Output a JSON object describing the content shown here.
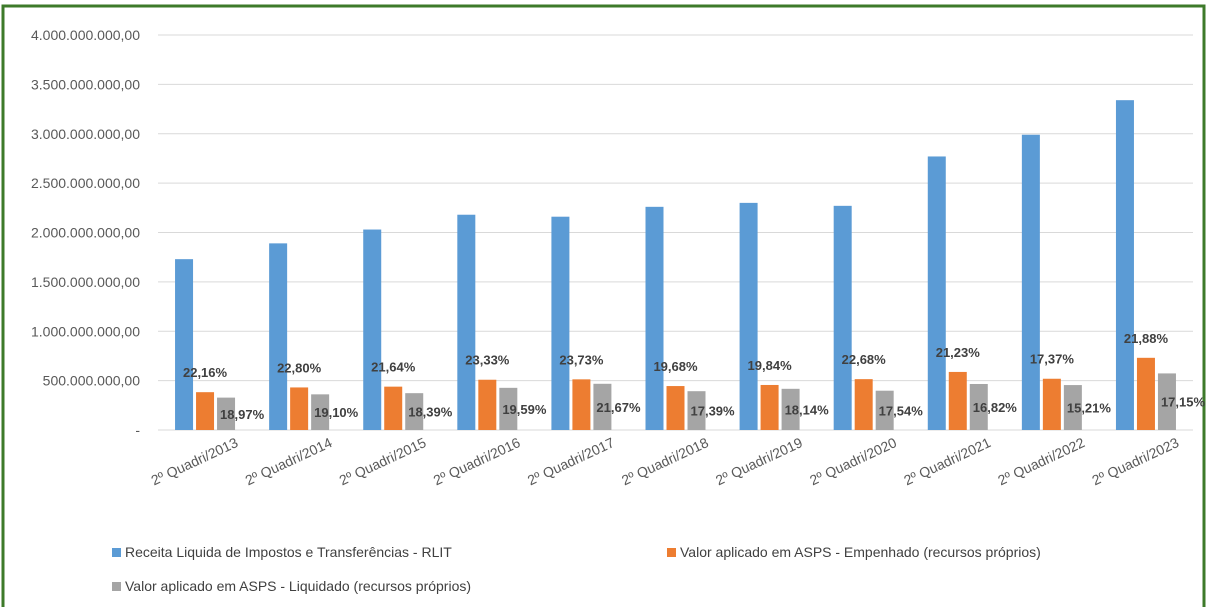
{
  "chart_data": {
    "type": "bar",
    "categories": [
      "2º Quadri/2013",
      "2º Quadri/2014",
      "2º Quadri/2015",
      "2º Quadri/2016",
      "2º Quadri/2017",
      "2º Quadri/2018",
      "2º Quadri/2019",
      "2º Quadri/2020",
      "2º Quadri/2021",
      "2º Quadri/2022",
      "2º Quadri/2023"
    ],
    "series": [
      {
        "name": "Receita Liquida de Impostos e Transferências - RLIT",
        "color": "#5b9bd5",
        "values": [
          1730000000,
          1890000000,
          2030000000,
          2180000000,
          2160000000,
          2260000000,
          2300000000,
          2270000000,
          2770000000,
          2990000000,
          3340000000
        ]
      },
      {
        "name": "Valor aplicado em ASPS - Empenhado (recursos próprios)",
        "color": "#ed7d31",
        "values": [
          383000000,
          431000000,
          439000000,
          509000000,
          513000000,
          445000000,
          456000000,
          515000000,
          588000000,
          519000000,
          731000000
        ],
        "labels": [
          "22,16%",
          "22,80%",
          "21,64%",
          "23,33%",
          "23,73%",
          "19,68%",
          "19,84%",
          "22,68%",
          "21,23%",
          "17,37%",
          "21,88%"
        ]
      },
      {
        "name": "Valor aplicado em ASPS - Liquidado (recursos próprios)",
        "color": "#a5a5a5",
        "values": [
          328000000,
          361000000,
          373000000,
          427000000,
          468000000,
          393000000,
          417000000,
          398000000,
          466000000,
          455000000,
          573000000
        ],
        "labels": [
          "18,97%",
          "19,10%",
          "18,39%",
          "19,59%",
          "21,67%",
          "17,39%",
          "18,14%",
          "17,54%",
          "16,82%",
          "15,21%",
          "17,15%"
        ]
      }
    ],
    "ylim": [
      0,
      4000000000
    ],
    "yticks": [
      {
        "value": 0,
        "label": "-"
      },
      {
        "value": 500000000,
        "label": "500.000.000,00"
      },
      {
        "value": 1000000000,
        "label": "1.000.000.000,00"
      },
      {
        "value": 1500000000,
        "label": "1.500.000.000,00"
      },
      {
        "value": 2000000000,
        "label": "2.000.000.000,00"
      },
      {
        "value": 2500000000,
        "label": "2.500.000.000,00"
      },
      {
        "value": 3000000000,
        "label": "3.000.000.000,00"
      },
      {
        "value": 3500000000,
        "label": "3.500.000.000,00"
      },
      {
        "value": 4000000000,
        "label": "4.000.000.000,00"
      }
    ],
    "grid": true
  }
}
